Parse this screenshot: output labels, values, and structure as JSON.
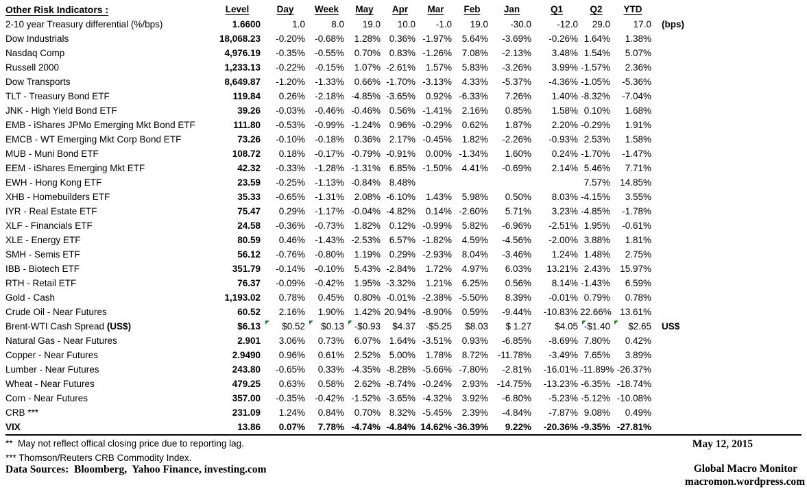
{
  "table": {
    "title": "Other Risk Indicators :",
    "columns": [
      "Level",
      "Day",
      "Week",
      "May",
      "Apr",
      "Mar",
      "Feb",
      "Jan",
      "Q1",
      "Q2",
      "YTD"
    ],
    "rows": [
      {
        "name": "2-10 year Treasury differential (%/bps)",
        "level": "1.6600",
        "values": [
          "1.0",
          "8.0",
          "19.0",
          "10.0",
          "-1.0",
          "19.0",
          "-30.0",
          "-12.0",
          "29.0",
          "17.0"
        ],
        "suffix": "(bps)"
      },
      {
        "name": "Dow Industrials",
        "level": "18,068.23",
        "values": [
          "-0.20%",
          "-0.68%",
          "1.28%",
          "0.36%",
          "-1.97%",
          "5.64%",
          "-3.69%",
          "-0.26%",
          "1.64%",
          "1.38%"
        ]
      },
      {
        "name": "Nasdaq Comp",
        "level": "4,976.19",
        "values": [
          "-0.35%",
          "-0.55%",
          "0.70%",
          "0.83%",
          "-1.26%",
          "7.08%",
          "-2.13%",
          "3.48%",
          "1.54%",
          "5.07%"
        ]
      },
      {
        "name": "Russell 2000",
        "level": "1,233.13",
        "values": [
          "-0.22%",
          "-0.15%",
          "1.07%",
          "-2.61%",
          "1.57%",
          "5.83%",
          "-3.26%",
          "3.99%",
          "-1.57%",
          "2.36%"
        ]
      },
      {
        "name": "Dow Transports",
        "level": "8,649.87",
        "values": [
          "-1.20%",
          "-1.33%",
          "0.66%",
          "-1.70%",
          "-3.13%",
          "4.33%",
          "-5.37%",
          "-4.36%",
          "-1.05%",
          "-5.36%"
        ]
      },
      {
        "name": "TLT - Treasury Bond ETF",
        "level": "119.84",
        "values": [
          "0.26%",
          "-2.18%",
          "-4.85%",
          "-3.65%",
          "0.92%",
          "-6.33%",
          "7.26%",
          "1.40%",
          "-8.32%",
          "-7.04%"
        ]
      },
      {
        "name": "JNK - High Yield Bond ETF",
        "level": "39.26",
        "values": [
          "-0.03%",
          "-0.46%",
          "-0.46%",
          "0.56%",
          "-1.41%",
          "2.16%",
          "0.85%",
          "1.58%",
          "0.10%",
          "1.68%"
        ]
      },
      {
        "name": "EMB - iShares JPMo Emerging Mkt Bond ETF",
        "level": "111.80",
        "values": [
          "-0.53%",
          "-0.99%",
          "-1.24%",
          "0.96%",
          "-0.29%",
          "0.62%",
          "1.87%",
          "2.20%",
          "-0.29%",
          "1.91%"
        ]
      },
      {
        "name": "EMCB - WT Emerging Mkt Corp Bond ETF",
        "level": "73.26",
        "values": [
          "-0.10%",
          "-0.18%",
          "0.36%",
          "2.17%",
          "-0.45%",
          "1.82%",
          "-2.26%",
          "-0.93%",
          "2.53%",
          "1.58%"
        ]
      },
      {
        "name": "MUB - Muni Bond ETF",
        "level": "108.72",
        "values": [
          "0.18%",
          "-0.17%",
          "-0.79%",
          "-0.91%",
          "0.00%",
          "-1.34%",
          "1.60%",
          "0.24%",
          "-1.70%",
          "-1.47%"
        ]
      },
      {
        "name": "EEM - iShares Emerging Mkt ETF",
        "level": "42.32",
        "values": [
          "-0.33%",
          "-1.28%",
          "-1.31%",
          "6.85%",
          "-1.50%",
          "4.41%",
          "-0.69%",
          "2.14%",
          "5.46%",
          "7.71%"
        ]
      },
      {
        "name": "EWH - Hong Kong ETF",
        "level": "23.59",
        "values": [
          "-0.25%",
          "-1.13%",
          "-0.84%",
          "8.48%",
          "",
          "",
          "",
          "",
          "7.57%",
          "14.85%"
        ]
      },
      {
        "name": "XHB - Homebuilders ETF",
        "level": "35.33",
        "values": [
          "-0.65%",
          "-1.31%",
          "2.08%",
          "-6.10%",
          "1.43%",
          "5.98%",
          "0.50%",
          "8.03%",
          "-4.15%",
          "3.55%"
        ]
      },
      {
        "name": "IYR - Real Estate ETF",
        "level": "75.47",
        "values": [
          "0.29%",
          "-1.17%",
          "-0.04%",
          "-4.82%",
          "0.14%",
          "-2.60%",
          "5.71%",
          "3.23%",
          "-4.85%",
          "-1.78%"
        ]
      },
      {
        "name": "XLF - Financials ETF",
        "level": "24.58",
        "values": [
          "-0.36%",
          "-0.73%",
          "1.82%",
          "0.12%",
          "-0.99%",
          "5.82%",
          "-6.96%",
          "-2.51%",
          "1.95%",
          "-0.61%"
        ]
      },
      {
        "name": "XLE - Energy ETF",
        "level": "80.59",
        "values": [
          "0.46%",
          "-1.43%",
          "-2.53%",
          "6.57%",
          "-1.82%",
          "4.59%",
          "-4.56%",
          "-2.00%",
          "3.88%",
          "1.81%"
        ]
      },
      {
        "name": "SMH - Semis ETF",
        "level": "56.12",
        "values": [
          "-0.76%",
          "-0.80%",
          "1.19%",
          "0.29%",
          "-2.93%",
          "8.04%",
          "-3.46%",
          "1.24%",
          "1.48%",
          "2.75%"
        ]
      },
      {
        "name": "IBB - Biotech ETF",
        "level": "351.79",
        "values": [
          "-0.14%",
          "-0.10%",
          "5.43%",
          "-2.84%",
          "1.72%",
          "4.97%",
          "6.03%",
          "13.21%",
          "2.43%",
          "15.97%"
        ]
      },
      {
        "name": "RTH - Retail ETF",
        "level": "76.37",
        "values": [
          "-0.09%",
          "-0.42%",
          "1.95%",
          "-3.32%",
          "1.21%",
          "6.25%",
          "0.56%",
          "8.14%",
          "-1.43%",
          "6.59%"
        ]
      },
      {
        "name": "Gold - Cash",
        "level": "1,193.02",
        "values": [
          "0.78%",
          "0.45%",
          "0.80%",
          "-0.01%",
          "-2.38%",
          "-5.50%",
          "8.39%",
          "-0.01%",
          "0.79%",
          "0.78%"
        ]
      },
      {
        "name": "Crude Oil - Near Futures",
        "level": "60.52",
        "values": [
          "2.16%",
          "1.90%",
          "1.42%",
          "20.94%",
          "-8.90%",
          "0.59%",
          "-9.44%",
          "-10.83%",
          "22.66%",
          "13.61%"
        ]
      },
      {
        "name": "Brent-WTI Cash Spread ",
        "name_bold": "(US$)",
        "level": "$6.13",
        "values": [
          "$0.52",
          "$0.13",
          "-$0.93",
          "$4.37",
          "-$5.25",
          "$8.03",
          "$ 1.27",
          "$4.05",
          "-$1.40",
          "$2.65"
        ],
        "suffix": "US$",
        "markers": [
          0,
          1,
          2,
          8,
          9
        ]
      },
      {
        "name": "Natural Gas - Near Futures",
        "level": "2.901",
        "values": [
          "3.06%",
          "0.73%",
          "6.07%",
          "1.64%",
          "-3.51%",
          "0.93%",
          "-6.85%",
          "-8.69%",
          "7.80%",
          "0.42%"
        ]
      },
      {
        "name": "Copper - Near Futures",
        "level": "2.9490",
        "values": [
          "0.96%",
          "0.61%",
          "2.52%",
          "5.00%",
          "1.78%",
          "8.72%",
          "-11.78%",
          "-3.49%",
          "7.65%",
          "3.89%"
        ]
      },
      {
        "name": "Lumber - Near Futures",
        "level": "243.80",
        "values": [
          "-0.65%",
          "0.33%",
          "-4.35%",
          "-8.28%",
          "-5.66%",
          "-7.80%",
          "-2.81%",
          "-16.01%",
          "-11.89%",
          "-26.37%"
        ]
      },
      {
        "name": "Wheat - Near Futures",
        "level": "479.25",
        "values": [
          "0.63%",
          "0.58%",
          "2.62%",
          "-8.74%",
          "-0.24%",
          "2.93%",
          "-14.75%",
          "-13.23%",
          "-6.35%",
          "-18.74%"
        ]
      },
      {
        "name": "Corn - Near Futures",
        "level": "357.00",
        "values": [
          "-0.35%",
          "-0.42%",
          "-1.52%",
          "-3.65%",
          "-4.32%",
          "3.92%",
          "-6.80%",
          "-5.23%",
          "-5.12%",
          "-10.08%"
        ]
      },
      {
        "name": "CRB ***",
        "level": "231.09",
        "values": [
          "1.24%",
          "0.84%",
          "0.70%",
          "8.32%",
          "-5.45%",
          "2.39%",
          "-4.84%",
          "-7.87%",
          "9.08%",
          "0.49%"
        ]
      },
      {
        "name": "VIX",
        "level": "13.86",
        "bold": true,
        "values": [
          "0.07%",
          "7.78%",
          "-4.74%",
          "-4.84%",
          "14.62%",
          "-36.39%",
          "9.22%",
          "-20.36%",
          "-9.35%",
          "-27.81%"
        ]
      }
    ]
  },
  "footnotes": {
    "note_double_star": "**  May not reflect offical closing price due to reporting lag.",
    "note_triple_star": "*** Thomson/Reuters CRB Commodity Index.",
    "sources": "Data Sources:  Bloomberg,  Yahoo Finance, investing.com"
  },
  "footer": {
    "date": "May 12, 2015",
    "brand": "Global Macro Monitor",
    "url": "macromon.wordpress.com"
  },
  "colors": {
    "marker_green": "#1e8c22",
    "text": "#000000",
    "background": "#ffffff"
  }
}
